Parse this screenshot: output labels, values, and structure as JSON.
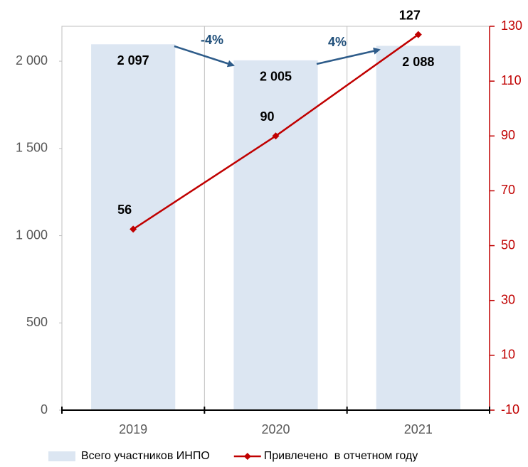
{
  "chart_data": {
    "type": "bar",
    "categories": [
      "2019",
      "2020",
      "2021"
    ],
    "series": [
      {
        "name": "Всего участников ИНПО",
        "type": "bar",
        "color": "#dce6f2",
        "values": [
          2097,
          2005,
          2088
        ],
        "value_labels": [
          "2 097",
          "2 005",
          "2 088"
        ]
      },
      {
        "name": "Привлечено  в отчетном году",
        "type": "line",
        "axis": "y2",
        "color": "#c00000",
        "values": [
          56,
          90,
          127
        ]
      }
    ],
    "ylim": [
      0,
      2200
    ],
    "yticks": [
      0,
      500,
      {
        "value": 1000,
        "label": "1 000"
      },
      {
        "value": 1500,
        "label": "1 500"
      },
      {
        "value": 2000,
        "label": "2 000"
      }
    ],
    "y2lim": [
      -10,
      130
    ],
    "y2ticks": [
      -10,
      10,
      30,
      50,
      70,
      90,
      110,
      130
    ],
    "annotations": [
      "-4%",
      "4%"
    ],
    "annotation_color": "#1f4e79",
    "grid": true,
    "legend": "bottom"
  }
}
